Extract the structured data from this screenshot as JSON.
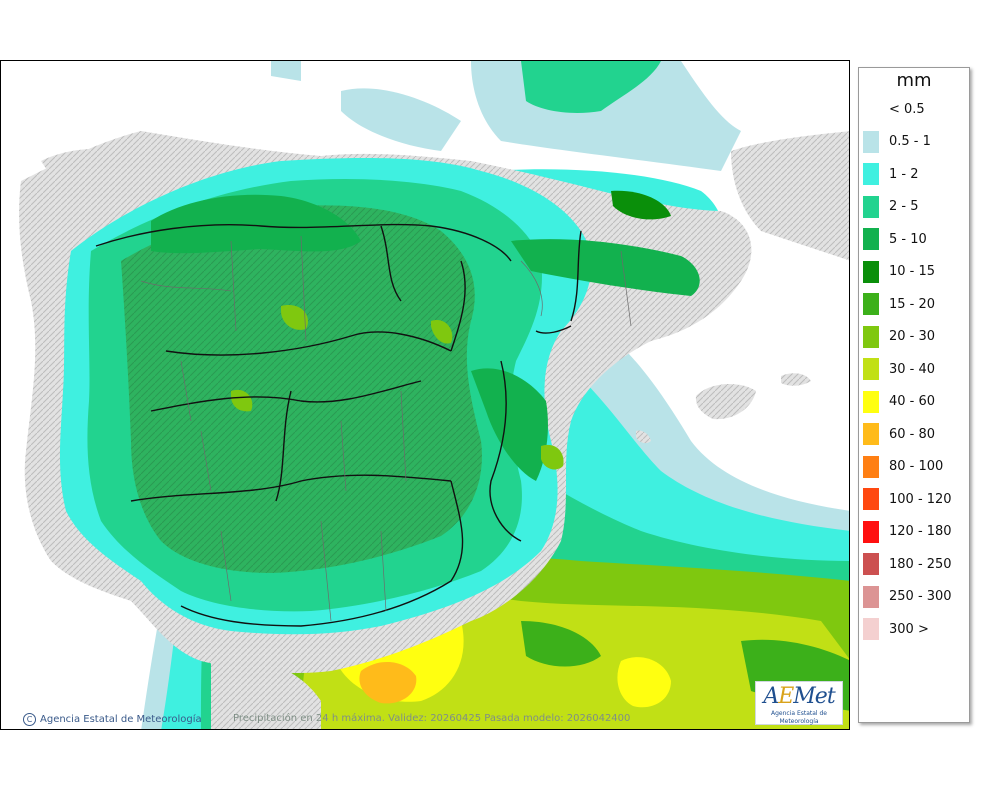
{
  "legend": {
    "unit": "mm",
    "items": [
      {
        "label": "< 0.5",
        "color": "#ffffff"
      },
      {
        "label": "0.5 - 1",
        "color": "#b9e3e8"
      },
      {
        "label": "1 - 2",
        "color": "#3ff0e0"
      },
      {
        "label": "2 - 5",
        "color": "#22d38f"
      },
      {
        "label": "5 - 10",
        "color": "#12b14e"
      },
      {
        "label": "10 - 15",
        "color": "#0a8f0a"
      },
      {
        "label": "15 - 20",
        "color": "#3cb01a"
      },
      {
        "label": "20 - 30",
        "color": "#7fc80f"
      },
      {
        "label": "30 - 40",
        "color": "#c1e015"
      },
      {
        "label": "40 - 60",
        "color": "#ffff10"
      },
      {
        "label": "60 - 80",
        "color": "#ffbb1a"
      },
      {
        "label": "80 - 100",
        "color": "#ff7f13"
      },
      {
        "label": "100 - 120",
        "color": "#ff4810"
      },
      {
        "label": "120 - 180",
        "color": "#ff1010"
      },
      {
        "label": "180 - 250",
        "color": "#cc5050"
      },
      {
        "label": "250 - 300",
        "color": "#dc9494"
      },
      {
        "label": "300 >",
        "color": "#f4d0d0"
      }
    ]
  },
  "credit": "Agencia Estatal de Meteorología",
  "caption": "Precipitación en 24 h máxima. Validez: 20260425 Pasada modelo: 2026042400",
  "logo": {
    "brand_a": "A",
    "brand_e": "E",
    "brand_rest": "Met",
    "sub": "Agencia Estatal de Meteorología"
  }
}
